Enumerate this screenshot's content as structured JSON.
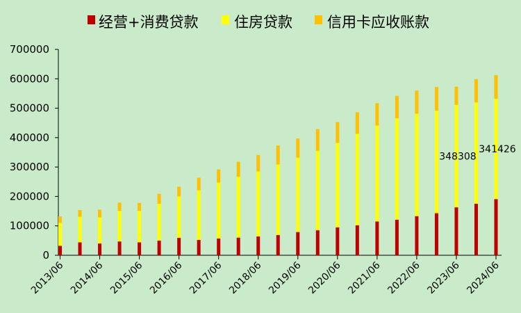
{
  "chart_data": {
    "type": "bar",
    "stacked": true,
    "title": "",
    "xlabel": "",
    "ylabel": "",
    "ylim": [
      0,
      700000
    ],
    "yticks": [
      "0",
      "100000",
      "200000",
      "300000",
      "400000",
      "500000",
      "600000",
      "700000"
    ],
    "ytick_values": [
      0,
      100000,
      200000,
      300000,
      400000,
      500000,
      600000,
      700000
    ],
    "xtick_labels": [
      "2013/06",
      "2014/06",
      "2015/06",
      "2016/06",
      "2017/06",
      "2018/06",
      "2019/06",
      "2020/06",
      "2021/06",
      "2022/06",
      "2023/06",
      "2024/06"
    ],
    "categories": [
      "2013/06",
      "2013/12",
      "2014/06",
      "2014/12",
      "2015/06",
      "2015/12",
      "2016/06",
      "2016/12",
      "2017/06",
      "2017/12",
      "2018/06",
      "2018/12",
      "2019/06",
      "2019/12",
      "2020/06",
      "2020/12",
      "2021/06",
      "2021/12",
      "2022/06",
      "2022/12",
      "2023/06",
      "2023/12",
      "2024/06"
    ],
    "legend_position": "top",
    "grid": false,
    "series": [
      {
        "name": "经营+消费贷款",
        "color": "#c00000",
        "values": [
          32000,
          44000,
          40000,
          47000,
          44000,
          50000,
          59000,
          52000,
          57000,
          60000,
          64000,
          69000,
          79000,
          85000,
          95000,
          102000,
          115000,
          121000,
          133000,
          143000,
          163000,
          175000,
          191000
        ]
      },
      {
        "name": "住房贷款",
        "color": "#ffff00",
        "values": [
          78000,
          87000,
          89000,
          104000,
          107000,
          125000,
          141000,
          169000,
          190000,
          207000,
          221000,
          240000,
          253000,
          270000,
          287000,
          311000,
          326000,
          345000,
          348000,
          349000,
          348308,
          345000,
          341426
        ]
      },
      {
        "name": "信用卡应收账款",
        "color": "#ffc000",
        "values": [
          22000,
          23000,
          26000,
          28000,
          27000,
          34000,
          33000,
          43000,
          45000,
          51000,
          56000,
          64000,
          65000,
          74000,
          71000,
          73000,
          76000,
          76000,
          79000,
          80000,
          62000,
          79000,
          80000
        ]
      }
    ],
    "annotations": [
      {
        "text": "348308",
        "category": "2023/06"
      },
      {
        "text": "341426",
        "category": "2024/06"
      }
    ]
  }
}
